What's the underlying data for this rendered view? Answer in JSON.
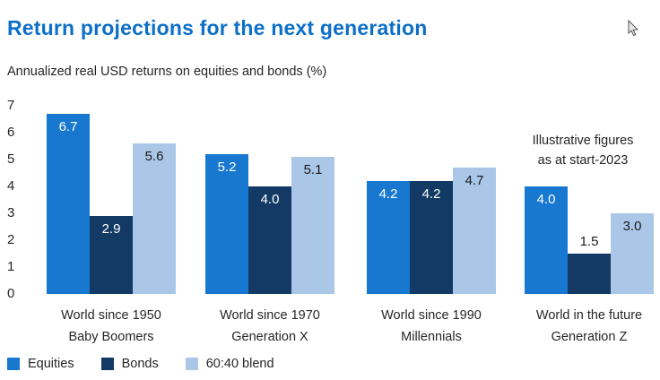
{
  "page": {
    "title": "Return projections for the next generation",
    "subtitle": "Annualized real USD returns on equities and bonds (%)",
    "annotation_line1": "Illustrative figures",
    "annotation_line2": "as at start-2023"
  },
  "colors": {
    "title": "#0d6fc8",
    "text": "#1a1a1a",
    "equities": "#1878cf",
    "bonds": "#123a64",
    "blend": "#aac7e8"
  },
  "chart_data": {
    "type": "bar",
    "title": "Return projections for the next generation",
    "subtitle": "Annualized real USD returns on equities and bonds (%)",
    "annotation": "Illustrative figures as at start-2023",
    "categories": [
      {
        "line1": "World since 1950",
        "line2": "Baby Boomers"
      },
      {
        "line1": "World since 1970",
        "line2": "Generation X"
      },
      {
        "line1": "World since 1990",
        "line2": "Millennials"
      },
      {
        "line1": "World in the future",
        "line2": "Generation Z"
      }
    ],
    "series": [
      {
        "name": "Equities",
        "color": "#1878cf",
        "label_color": "#ffffff",
        "values": [
          6.7,
          5.2,
          4.2,
          4.0
        ]
      },
      {
        "name": "Bonds",
        "color": "#123a64",
        "label_color": "#ffffff",
        "values": [
          2.9,
          4.0,
          4.2,
          1.5
        ]
      },
      {
        "name": "60:40 blend",
        "color": "#aac7e8",
        "label_color": "#1a1a1a",
        "values": [
          5.6,
          5.1,
          4.7,
          3.0
        ]
      }
    ],
    "ylim": [
      0,
      7
    ],
    "yticks": [
      0,
      1,
      2,
      3,
      4,
      5,
      6,
      7
    ],
    "grid": false,
    "legend_position": "bottom-left"
  }
}
